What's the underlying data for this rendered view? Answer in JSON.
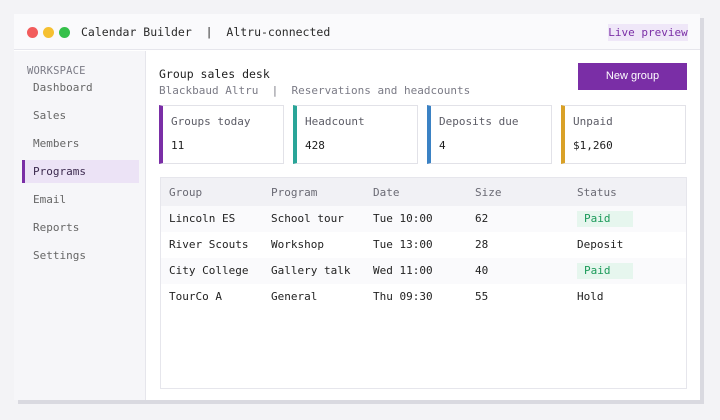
{
  "window": {
    "title": "Calendar Builder  |  Altru-connected",
    "live_preview": "Live preview"
  },
  "sidebar": {
    "heading": "WORKSPACE",
    "items": [
      {
        "label": "Dashboard",
        "active": false
      },
      {
        "label": "Sales",
        "active": false
      },
      {
        "label": "Members",
        "active": false
      },
      {
        "label": "Programs",
        "active": true
      },
      {
        "label": "Email",
        "active": false
      },
      {
        "label": "Reports",
        "active": false
      },
      {
        "label": "Settings",
        "active": false
      }
    ]
  },
  "main": {
    "title": "Group sales desk",
    "subtitle": "Blackbaud Altru  |  Reservations and headcounts",
    "new_group_label": "New group"
  },
  "cards": [
    {
      "label": "Groups today",
      "value": "11",
      "color": "#7a2ea6"
    },
    {
      "label": "Headcount",
      "value": "428",
      "color": "#2aa598"
    },
    {
      "label": "Deposits due",
      "value": "4",
      "color": "#3b82c4"
    },
    {
      "label": "Unpaid",
      "value": "$1,260",
      "color": "#d9a127"
    }
  ],
  "table": {
    "headers": [
      "Group",
      "Program",
      "Date",
      "Size",
      "Status"
    ],
    "rows": [
      {
        "group": "Lincoln ES",
        "program": "School tour",
        "date": "Tue 10:00",
        "size": "62",
        "status": "Paid",
        "status_badge": true
      },
      {
        "group": "River Scouts",
        "program": "Workshop",
        "date": "Tue 13:00",
        "size": "28",
        "status": "Deposit",
        "status_badge": false
      },
      {
        "group": "City College",
        "program": "Gallery talk",
        "date": "Wed 11:00",
        "size": "40",
        "status": "Paid",
        "status_badge": true
      },
      {
        "group": "TourCo A",
        "program": "General",
        "date": "Thu 09:30",
        "size": "55",
        "status": "Hold",
        "status_badge": false
      }
    ]
  },
  "colors": {
    "accent": "#7a2ea6",
    "paid_badge_bg": "#e6f6ee",
    "paid_badge_text": "#1c9a5a"
  }
}
